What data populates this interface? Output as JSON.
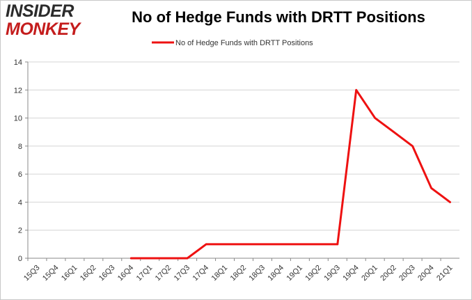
{
  "brand": {
    "line1": "INSIDER",
    "line2": "MONKEY"
  },
  "chart_data": {
    "type": "line",
    "title": "No of Hedge Funds with DRTT Positions",
    "categories": [
      "15Q3",
      "15Q4",
      "16Q1",
      "16Q2",
      "16Q3",
      "16Q4",
      "17Q1",
      "17Q2",
      "17Q3",
      "17Q4",
      "18Q1",
      "18Q2",
      "18Q3",
      "18Q4",
      "19Q1",
      "19Q2",
      "19Q3",
      "19Q4",
      "20Q1",
      "20Q2",
      "20Q3",
      "20Q4",
      "21Q1"
    ],
    "series": [
      {
        "name": "No of Hedge Funds with DRTT Positions",
        "color": "#ee1111",
        "values": [
          null,
          null,
          null,
          null,
          null,
          0,
          0,
          0,
          0,
          1,
          1,
          1,
          1,
          1,
          1,
          1,
          1,
          12,
          10,
          9,
          8,
          5,
          4
        ]
      }
    ],
    "ylim": [
      0,
      14
    ],
    "yticks": [
      0,
      2,
      4,
      6,
      8,
      10,
      12,
      14
    ],
    "grid": true,
    "legend": "top-center",
    "xlabel": "",
    "ylabel": ""
  }
}
